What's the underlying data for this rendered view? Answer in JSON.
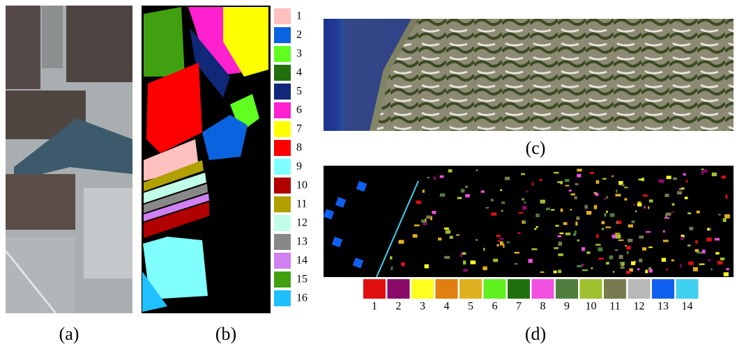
{
  "panels": {
    "a": {
      "caption": "(a)"
    },
    "b": {
      "caption": "(b)",
      "legend": [
        {
          "label": "1",
          "color": "#ffc0c0"
        },
        {
          "label": "2",
          "color": "#0a64e0"
        },
        {
          "label": "3",
          "color": "#60ff20"
        },
        {
          "label": "4",
          "color": "#207010"
        },
        {
          "label": "5",
          "color": "#102878"
        },
        {
          "label": "6",
          "color": "#ff20d0"
        },
        {
          "label": "7",
          "color": "#ffff00"
        },
        {
          "label": "8",
          "color": "#ff0000"
        },
        {
          "label": "9",
          "color": "#80ffff"
        },
        {
          "label": "10",
          "color": "#b00000"
        },
        {
          "label": "11",
          "color": "#b0a000"
        },
        {
          "label": "12",
          "color": "#c0ffe8"
        },
        {
          "label": "13",
          "color": "#888888"
        },
        {
          "label": "14",
          "color": "#d080f0"
        },
        {
          "label": "15",
          "color": "#40a010"
        },
        {
          "label": "16",
          "color": "#20c0ff"
        }
      ]
    },
    "c": {
      "caption": "(c)"
    },
    "d": {
      "caption": "(d)",
      "legend": [
        {
          "label": "1",
          "color": "#e01010"
        },
        {
          "label": "2",
          "color": "#8a0a6a"
        },
        {
          "label": "3",
          "color": "#ffff20"
        },
        {
          "label": "4",
          "color": "#e08010"
        },
        {
          "label": "5",
          "color": "#e0b020"
        },
        {
          "label": "6",
          "color": "#60f020"
        },
        {
          "label": "7",
          "color": "#207010"
        },
        {
          "label": "8",
          "color": "#f050e0"
        },
        {
          "label": "9",
          "color": "#4f7f3f"
        },
        {
          "label": "10",
          "color": "#a0c030"
        },
        {
          "label": "11",
          "color": "#7a7a50"
        },
        {
          "label": "12",
          "color": "#b8b8b8"
        },
        {
          "label": "13",
          "color": "#1060f0"
        },
        {
          "label": "14",
          "color": "#40d0f0"
        }
      ]
    }
  }
}
